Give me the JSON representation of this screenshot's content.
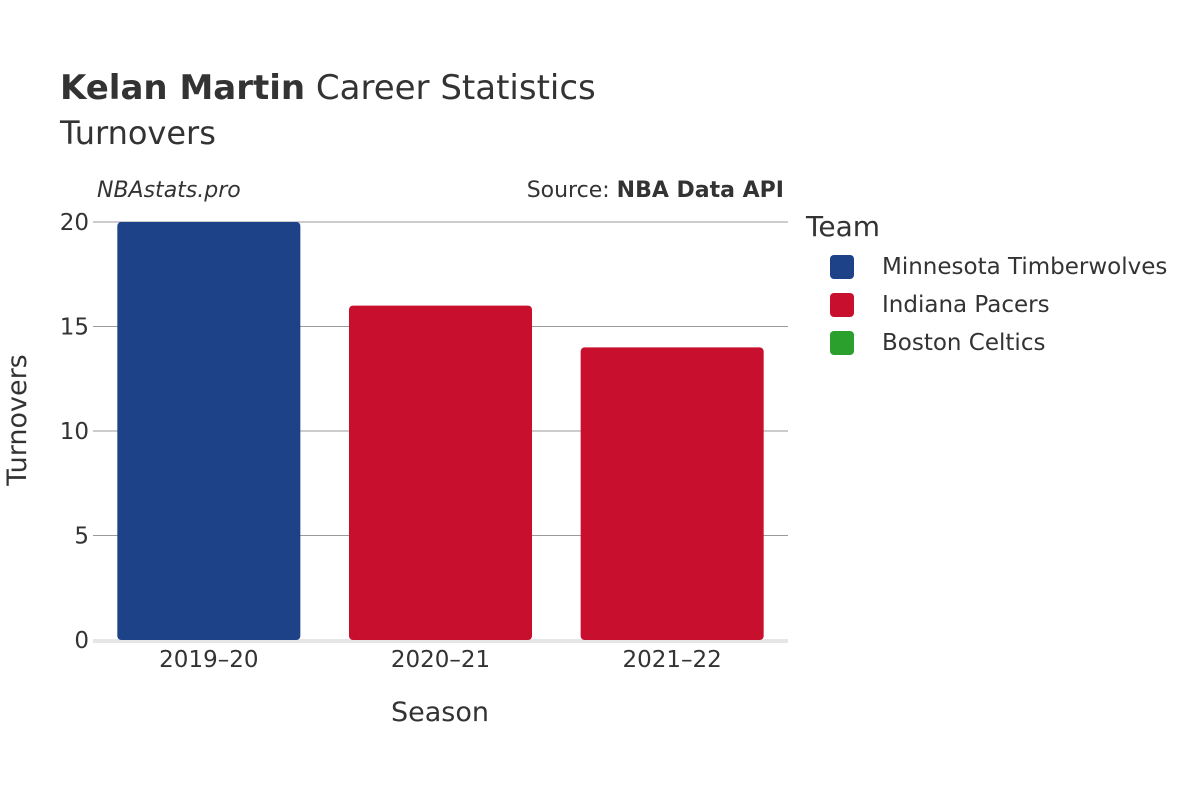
{
  "header": {
    "title_bold": "Kelan Martin",
    "title_rest": " Career Statistics",
    "subtitle": "Turnovers",
    "brand": "NBAstats.pro",
    "source_prefix": "Source: ",
    "source_name": "NBA Data API"
  },
  "legend": {
    "title": "Team",
    "items": [
      {
        "label": "Minnesota Timberwolves",
        "color": "#1d4287"
      },
      {
        "label": "Indiana Pacers",
        "color": "#c8102e"
      },
      {
        "label": "Boston Celtics",
        "color": "#2ca02c"
      }
    ]
  },
  "chart_data": {
    "type": "bar",
    "categories": [
      "2019–20",
      "2020–21",
      "2021–22"
    ],
    "values": [
      20,
      16,
      14
    ],
    "bar_colors": [
      "#1d4287",
      "#c8102e",
      "#c8102e"
    ],
    "xlabel": "Season",
    "ylabel": "Turnovers",
    "ylim": [
      0,
      20
    ],
    "yticks": [
      0,
      5,
      10,
      15,
      20
    ],
    "grid": true
  }
}
